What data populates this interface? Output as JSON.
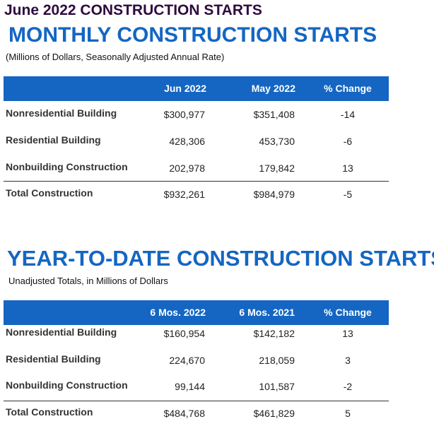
{
  "header": {
    "title": "June 2022 CONSTRUCTION STARTS"
  },
  "tables": [
    {
      "heading": "MONTHLY CONSTRUCTION STARTS",
      "subtitle": "(Millions of Dollars, Seasonally Adjusted Annual Rate)",
      "columns": [
        "Jun 2022",
        "May 2022",
        "% Change"
      ],
      "rows": [
        [
          "Nonresidential Building",
          "$300,977",
          "$351,408",
          "-14"
        ],
        [
          "Residential Building",
          "428,306",
          "453,730",
          "-6"
        ],
        [
          "Nonbuilding Construction",
          "202,978",
          "179,842",
          "13"
        ],
        [
          "Total Construction",
          "$932,261",
          "$984,979",
          "-5"
        ]
      ]
    },
    {
      "heading": "YEAR-TO-DATE CONSTRUCTION STARTS",
      "subtitle": "Unadjusted Totals, in Millions of Dollars",
      "columns": [
        "6 Mos. 2022",
        "6 Mos. 2021",
        "% Change"
      ],
      "rows": [
        [
          "Nonresidential Building",
          "$160,954",
          "$142,182",
          "13"
        ],
        [
          "Residential Building",
          "224,670",
          "218,059",
          "3"
        ],
        [
          "Nonbuilding Construction",
          "99,144",
          "101,587",
          "-2"
        ],
        [
          "Total Construction",
          "$484,768",
          "$461,829",
          "5"
        ]
      ]
    }
  ]
}
